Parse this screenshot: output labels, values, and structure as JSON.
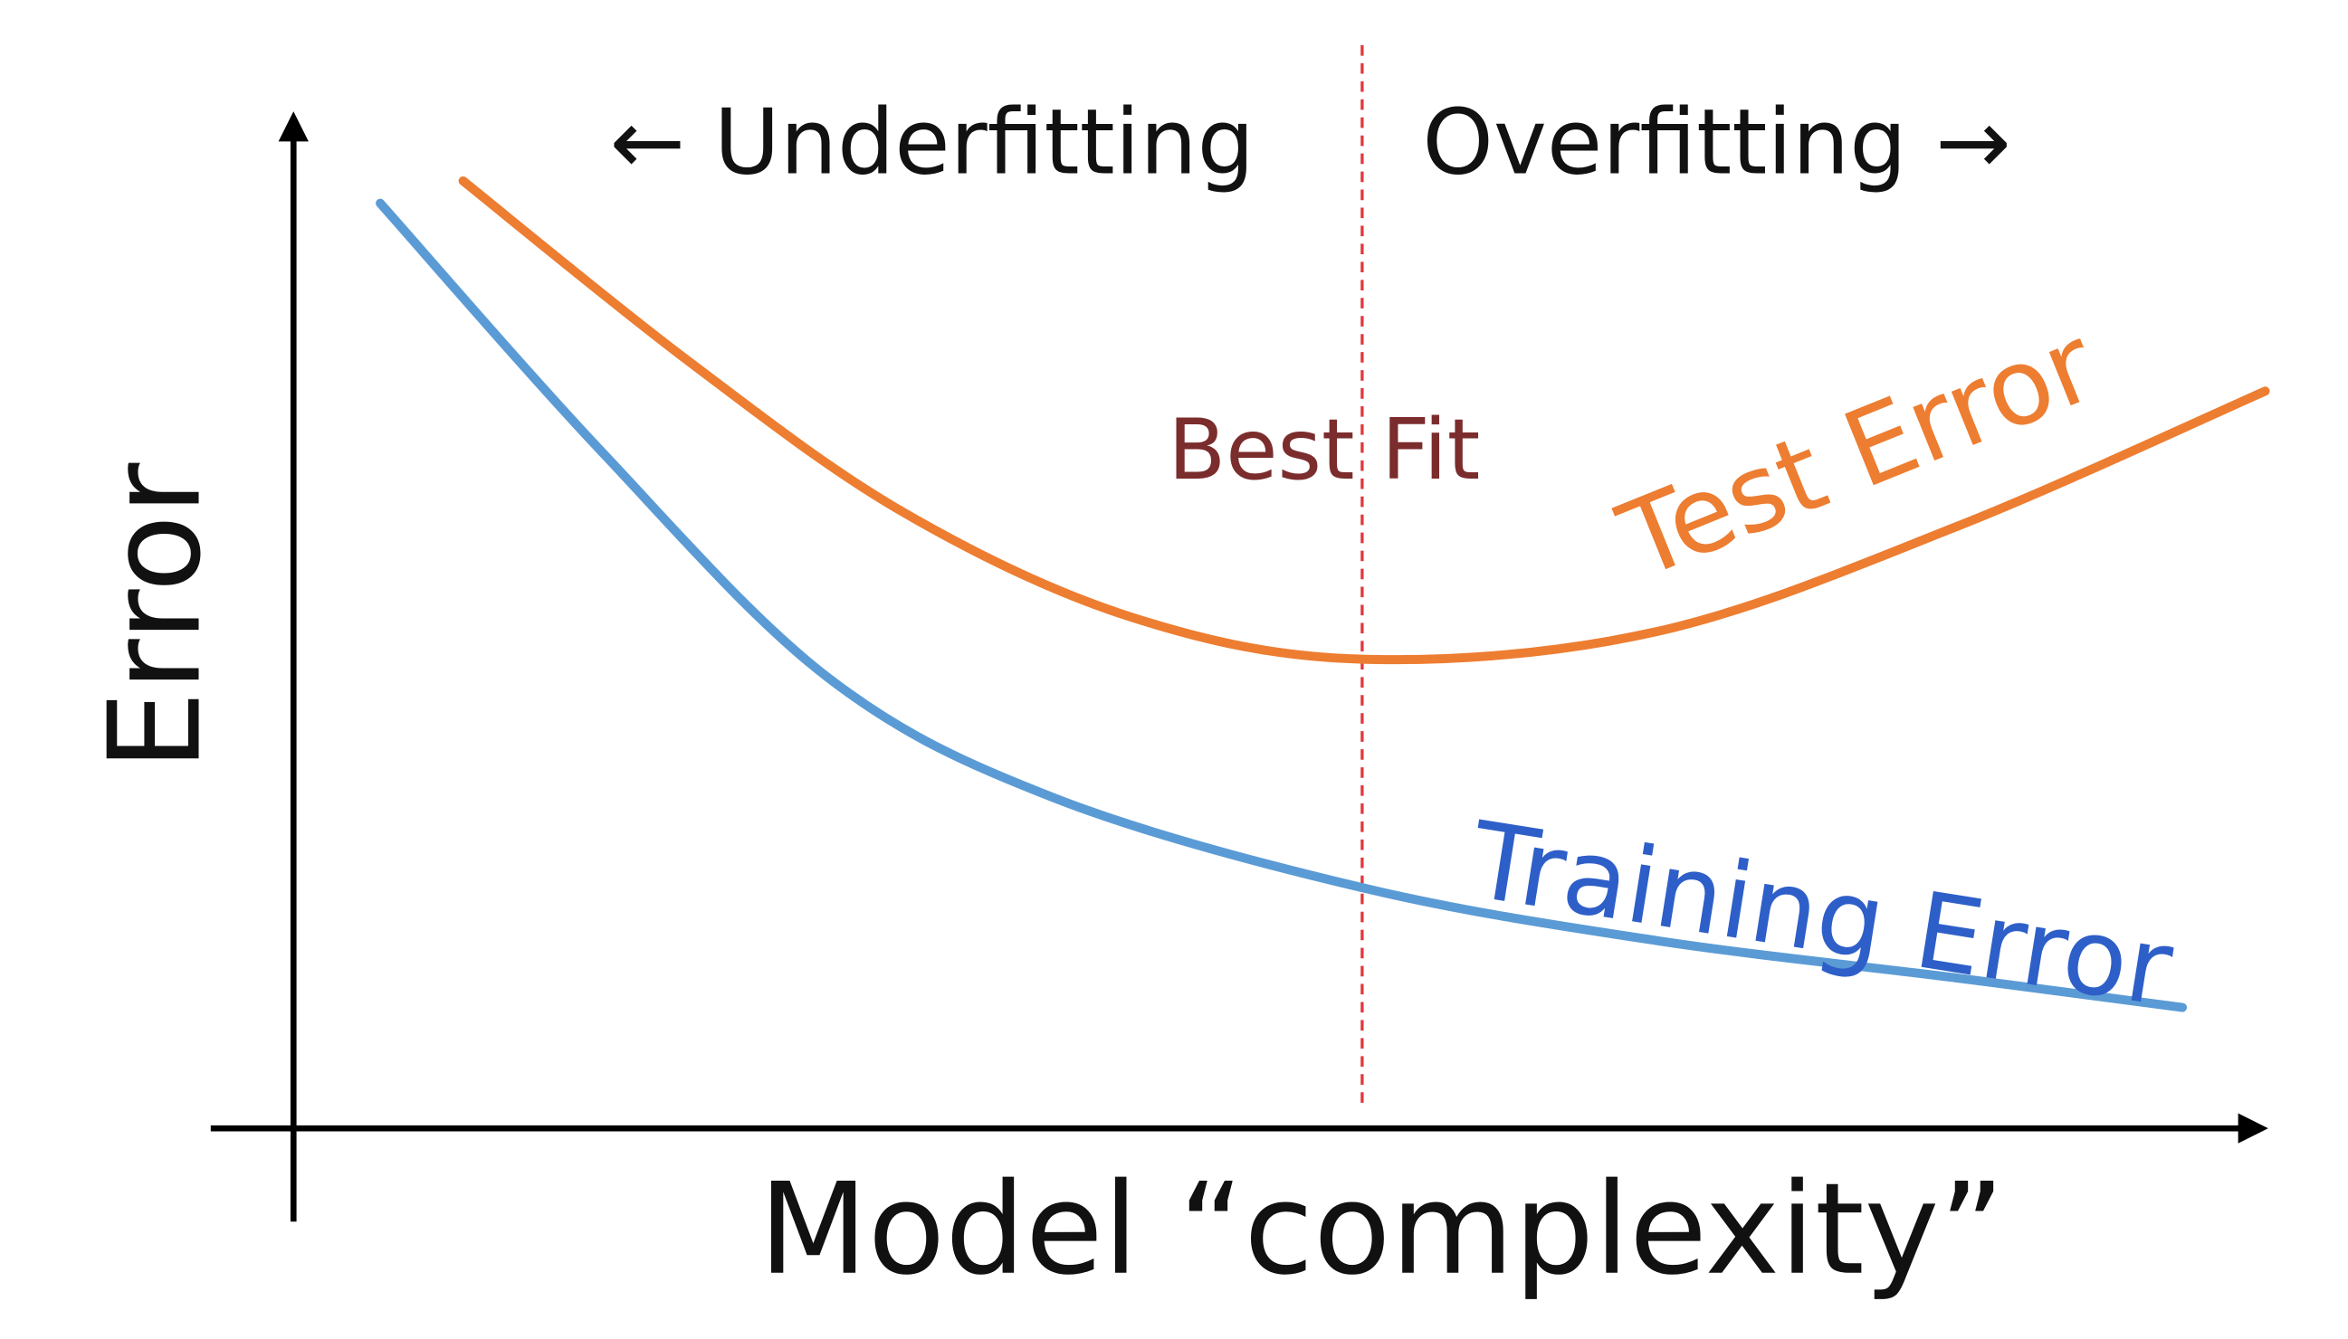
{
  "chart_data": {
    "type": "line",
    "title": "",
    "xlabel": "Model “complexity”",
    "ylabel": "Error",
    "xlim": [
      0,
      10
    ],
    "ylim": [
      0,
      10
    ],
    "grid": false,
    "ticks": false,
    "series": [
      {
        "name": "Test Error",
        "color": "#ED7D31",
        "label_color": "#ED7D31",
        "x": [
          0.86,
          2.0,
          3.09,
          4.24,
          5.42,
          6.91,
          8.44,
          10.0
        ],
        "y": [
          9.33,
          7.56,
          6.07,
          5.04,
          4.62,
          4.89,
          5.93,
          7.26
        ]
      },
      {
        "name": "Training Error",
        "color": "#5B9BD5",
        "label_color": "#2E5FC8",
        "x": [
          0.44,
          1.56,
          2.71,
          3.85,
          5.42,
          6.91,
          8.44,
          9.58
        ],
        "y": [
          9.11,
          6.67,
          4.44,
          3.26,
          2.37,
          1.85,
          1.48,
          1.19
        ]
      }
    ],
    "annotations": {
      "best_fit": {
        "label": "Best Fit",
        "x": 5.42,
        "line_color": "#E0393E",
        "label_color": "#7B2C2C",
        "line_style": "dashed"
      },
      "underfitting": "← Underfitting",
      "overfitting": "Overfitting →"
    }
  }
}
